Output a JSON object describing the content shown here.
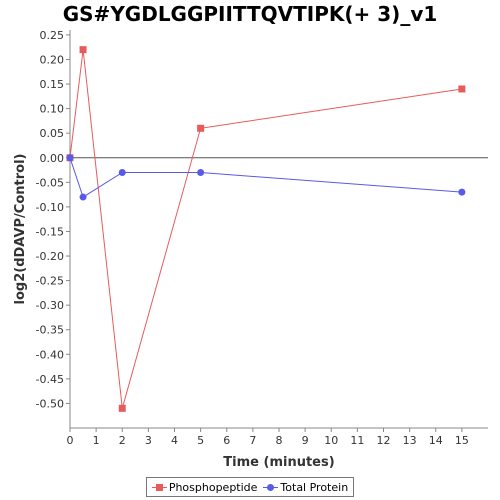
{
  "chart_data": {
    "type": "line",
    "title": "GS#YGDLGGPIITTQVTIPK(+ 3)_v1",
    "xlabel": "Time (minutes)",
    "ylabel": "log2(dDAVP/Control)",
    "xlim": [
      0,
      16
    ],
    "ylim": [
      -0.55,
      0.26
    ],
    "x_ticks": [
      "0",
      "1",
      "2",
      "3",
      "4",
      "5",
      "6",
      "7",
      "8",
      "9",
      "10",
      "11",
      "12",
      "13",
      "14",
      "15"
    ],
    "y_ticks": [
      "0.25",
      "0.20",
      "0.15",
      "0.10",
      "0.05",
      "0.00",
      "-0.05",
      "-0.10",
      "-0.15",
      "-0.20",
      "-0.25",
      "-0.30",
      "-0.35",
      "-0.40",
      "-0.45",
      "-0.50"
    ],
    "grid": false,
    "legend_position": "bottom",
    "series": [
      {
        "name": "Phosphopeptide",
        "color": "#e85b5b",
        "marker": "square",
        "x": [
          0,
          0.5,
          2,
          5,
          15
        ],
        "y": [
          0.0,
          0.22,
          -0.51,
          0.06,
          0.14
        ]
      },
      {
        "name": "Total Protein",
        "color": "#5a5ae8",
        "marker": "circle",
        "x": [
          0,
          0.5,
          2,
          5,
          15
        ],
        "y": [
          0.0,
          -0.08,
          -0.03,
          -0.03,
          -0.07
        ]
      }
    ]
  }
}
